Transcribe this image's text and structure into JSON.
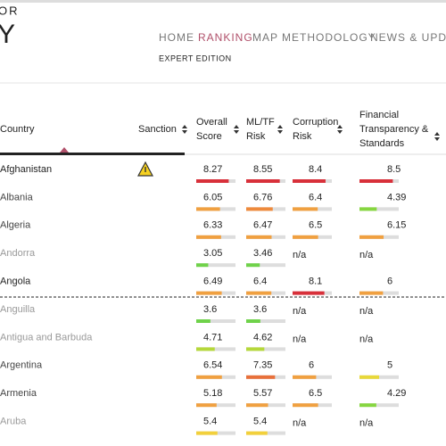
{
  "header": {
    "title_top": "OR",
    "title_main": "Y",
    "nav": [
      "HOME",
      "RANKING",
      "MAP",
      "METHODOLOGY",
      "NEWS & UPDAT"
    ],
    "active_nav": 1,
    "edition": "EXPERT EDITION"
  },
  "table": {
    "columns": [
      [
        "Country"
      ],
      [
        "Sanction"
      ],
      [
        "Overall",
        "Score"
      ],
      [
        "ML/TF",
        "Risk"
      ],
      [
        "Corruption",
        "Risk"
      ],
      [
        "Financial",
        "Transparency &",
        "Standards"
      ]
    ],
    "rows": [
      {
        "country": "Afghanistan",
        "name_color": "#222",
        "sanction": true,
        "scores": [
          8.27,
          8.55,
          8.4,
          8.5
        ],
        "colors": [
          "#d8303a",
          "#d8303a",
          "#d8303a",
          "#d8303a"
        ]
      },
      {
        "country": "Albania",
        "name_color": "#444",
        "sanction": false,
        "scores": [
          6.05,
          6.76,
          6.4,
          4.39
        ],
        "colors": [
          "#f0a040",
          "#ee8a3c",
          "#f0a040",
          "#86d640"
        ]
      },
      {
        "country": "Algeria",
        "name_color": "#444",
        "sanction": false,
        "scores": [
          6.33,
          6.47,
          6.5,
          6.15
        ],
        "colors": [
          "#f0a040",
          "#f0a040",
          "#f0a040",
          "#f0a040"
        ]
      },
      {
        "country": "Andorra",
        "name_color": "#999",
        "sanction": false,
        "scores": [
          3.05,
          3.46,
          "n/a",
          "n/a"
        ],
        "colors": [
          "#6fd24a",
          "#6fd24a",
          null,
          null
        ]
      },
      {
        "country": "Angola",
        "name_color": "#222",
        "sanction": false,
        "scores": [
          6.49,
          6.4,
          8.1,
          6
        ],
        "colors": [
          "#f0a040",
          "#f0a040",
          "#d8303a",
          "#f0a040"
        ]
      },
      {
        "country": "Anguilla",
        "name_color": "#999",
        "sanction": false,
        "scores": [
          3.6,
          3.6,
          "n/a",
          "n/a"
        ],
        "colors": [
          "#6fd24a",
          "#6fd24a",
          null,
          null
        ]
      },
      {
        "country": "Antigua and Barbuda",
        "name_color": "#999",
        "sanction": false,
        "scores": [
          4.71,
          4.62,
          "n/a",
          "n/a"
        ],
        "colors": [
          "#b5d83a",
          "#b5d83a",
          null,
          null
        ]
      },
      {
        "country": "Argentina",
        "name_color": "#444",
        "sanction": false,
        "scores": [
          6.54,
          7.35,
          6,
          5
        ],
        "colors": [
          "#f0a040",
          "#e8703a",
          "#f0a040",
          "#e8d83a"
        ]
      },
      {
        "country": "Armenia",
        "name_color": "#444",
        "sanction": false,
        "scores": [
          5.18,
          5.57,
          6.5,
          4.29
        ],
        "colors": [
          "#f0a040",
          "#f0a040",
          "#f0a040",
          "#86d640"
        ]
      },
      {
        "country": "Aruba",
        "name_color": "#999",
        "sanction": false,
        "scores": [
          5.4,
          5.4,
          "n/a",
          "n/a"
        ],
        "colors": [
          "#f2d03b",
          "#f2d03b",
          null,
          null
        ]
      }
    ]
  }
}
